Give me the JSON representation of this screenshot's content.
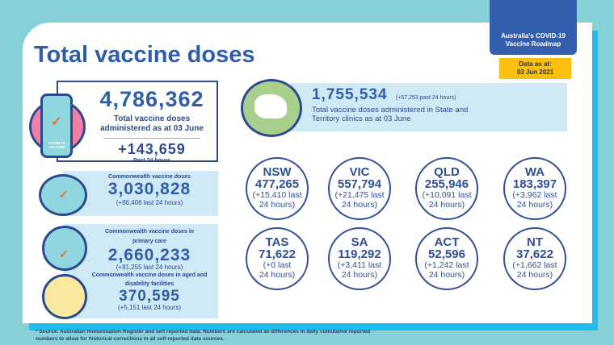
{
  "title": "Total vaccine doses",
  "roadmap": "Australia's COVID-19 Vaccine Roadmap",
  "data_as_at_label": "Data as at:",
  "data_as_at_date": "03 Jun 2021",
  "total": {
    "value": "4,786,362",
    "label": "Total vaccine doses administered as at 03 June",
    "change": "+143,659",
    "change_label": "Past 24 hours",
    "vial_label": "COVID-19 VACCINE"
  },
  "commonwealth": {
    "label": "Commonwealth vaccine doses",
    "value": "3,030,828",
    "change": "(+86,406 last 24 hours)"
  },
  "primary_care": {
    "label": "Commonwealth vaccine doses in primary care",
    "value": "2,660,233",
    "change": "(+81,255 last 24 hours)"
  },
  "aged_care": {
    "label": "Commonwealth vaccine doses in aged and disability facilities",
    "value": "370,595",
    "change": "(+5,151 last 24 hours)"
  },
  "state_total": {
    "value": "1,755,534",
    "change": "(+57,253 past 24 hours)",
    "label": "Total vaccine doses administered in State and Territory clinics as at 03 June"
  },
  "states": [
    {
      "name": "NSW",
      "value": "477,265",
      "change": "(+15,410 last",
      "suffix": "24 hours)"
    },
    {
      "name": "VIC",
      "value": "557,794",
      "change": "(+21,475 last",
      "suffix": "24 hours)"
    },
    {
      "name": "QLD",
      "value": "255,946",
      "change": "(+10,091 last",
      "suffix": "24 hours)"
    },
    {
      "name": "WA",
      "value": "183,397",
      "change": "(+3,962 last",
      "suffix": "24 hours)"
    },
    {
      "name": "TAS",
      "value": "71,622",
      "change": "(+0 last",
      "suffix": "24 hours)"
    },
    {
      "name": "SA",
      "value": "119,292",
      "change": "(+3,411 last",
      "suffix": "24 hours)"
    },
    {
      "name": "ACT",
      "value": "52,596",
      "change": "(+1,242 last",
      "suffix": "24 hours)"
    },
    {
      "name": "NT",
      "value": "37,622",
      "change": "(+1,662 last",
      "suffix": "24 hours)"
    }
  ],
  "footnote": "* Source: Australian Immunisation Register and self reported data. Numbers are calculated as differences in daily cumulative reported numbers to allow for historical corrections in all self-reported data sources."
}
